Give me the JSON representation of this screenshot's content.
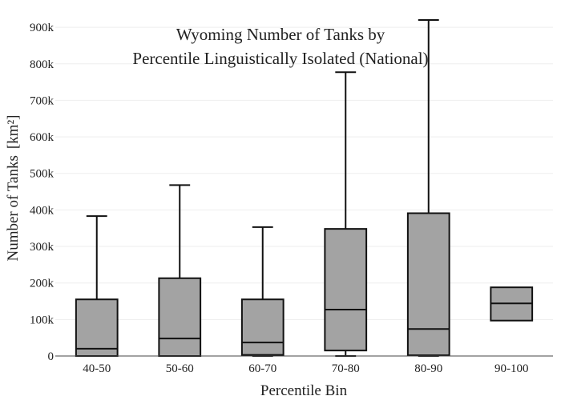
{
  "chart_data": {
    "type": "box",
    "title_lines": [
      "Wyoming Number of Tanks by",
      "Percentile Linguistically Isolated (National)"
    ],
    "xlabel": "Percentile Bin",
    "ylabel": "Number of Tanks",
    "ylabel_unit": "[km²]",
    "ylim": [
      0,
      920000
    ],
    "y_ticks": [
      0,
      100000,
      200000,
      300000,
      400000,
      500000,
      600000,
      700000,
      800000,
      900000
    ],
    "y_tick_labels": [
      "0",
      "100k",
      "200k",
      "300k",
      "400k",
      "500k",
      "600k",
      "700k",
      "800k",
      "900k"
    ],
    "grid": true,
    "box_color": "#a3a3a3",
    "line_color": "#111111",
    "categories": [
      "40-50",
      "50-60",
      "60-70",
      "70-80",
      "80-90",
      "90-100"
    ],
    "boxes": [
      {
        "category": "40-50",
        "min": 0,
        "q1": 0,
        "median": 20000,
        "q3": 155000,
        "max": 383000
      },
      {
        "category": "50-60",
        "min": 0,
        "q1": 0,
        "median": 48000,
        "q3": 213000,
        "max": 468000
      },
      {
        "category": "60-70",
        "min": 0,
        "q1": 3000,
        "median": 37000,
        "q3": 155000,
        "max": 353000
      },
      {
        "category": "70-80",
        "min": 0,
        "q1": 15000,
        "median": 127000,
        "q3": 348000,
        "max": 777000
      },
      {
        "category": "80-90",
        "min": 0,
        "q1": 2000,
        "median": 74000,
        "q3": 391000,
        "max": 920000
      },
      {
        "category": "90-100",
        "min": 97000,
        "q1": 97000,
        "median": 144000,
        "q3": 188000,
        "max": 188000
      }
    ]
  }
}
